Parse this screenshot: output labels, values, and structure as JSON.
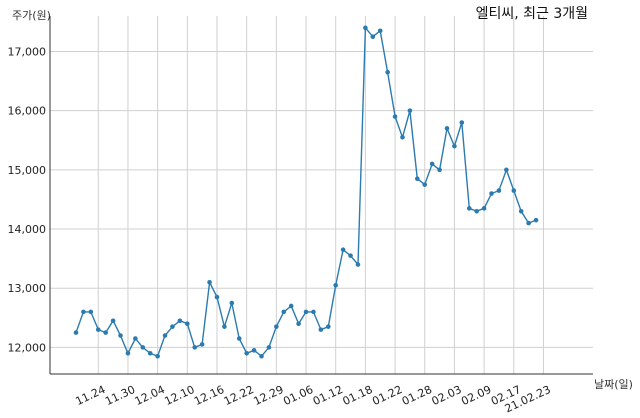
{
  "chart_data": {
    "type": "line",
    "title": "엘티씨, 최근 3개월",
    "xlabel": "날짜(일)",
    "ylabel": "주가(원)",
    "ylim": [
      11550,
      17600
    ],
    "y_ticks": [
      "12,000",
      "13,000",
      "14,000",
      "15,000",
      "16,000",
      "17,000"
    ],
    "y_tick_values": [
      12000,
      13000,
      14000,
      15000,
      16000,
      17000
    ],
    "x_tick_labels": [
      "11.24",
      "11.30",
      "12.04",
      "12.10",
      "12.16",
      "12.22",
      "12.29",
      "01.06",
      "01.12",
      "01.18",
      "01.22",
      "01.28",
      "02.03",
      "02.09",
      "02.17",
      "21.02.23"
    ],
    "x_tick_indices": [
      3,
      7,
      11,
      15,
      19,
      23,
      27,
      31,
      35,
      39,
      43,
      47,
      51,
      55,
      59,
      63
    ],
    "grid": true,
    "color": "#2b7bb0",
    "series": [
      {
        "values": [
          12250,
          12600,
          12600,
          12300,
          12250,
          12450,
          12200,
          11900,
          12150,
          12000,
          11900,
          11850,
          12200,
          12350,
          12450,
          12400,
          12000,
          12050,
          13100,
          12850,
          12350,
          12750,
          12150,
          11900,
          11950,
          11850,
          12000,
          12350,
          12600,
          12700,
          12400,
          12600,
          12600,
          12300,
          12350,
          13050,
          13650,
          13550,
          13400,
          17400,
          17250,
          17350,
          16650,
          15900,
          15550,
          16000,
          14850,
          14750,
          15100,
          15000,
          15700,
          15400,
          15800,
          14350,
          14300,
          14350,
          14600,
          14650,
          15000,
          14650,
          14300,
          14100,
          14150
        ]
      }
    ]
  }
}
